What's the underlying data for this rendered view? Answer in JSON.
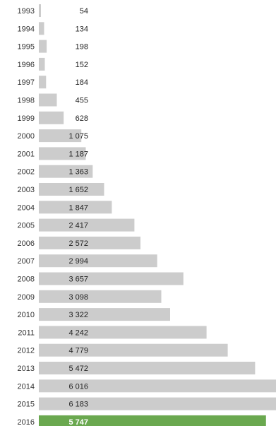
{
  "chart_data": {
    "type": "bar",
    "orientation": "horizontal",
    "categories": [
      "1993",
      "1994",
      "1995",
      "1996",
      "1997",
      "1998",
      "1999",
      "2000",
      "2001",
      "2002",
      "2003",
      "2004",
      "2005",
      "2006",
      "2007",
      "2008",
      "2009",
      "2010",
      "2011",
      "2012",
      "2013",
      "2014",
      "2015",
      "2016"
    ],
    "values": [
      54,
      134,
      198,
      152,
      184,
      455,
      628,
      1075,
      1187,
      1363,
      1652,
      1847,
      2417,
      2572,
      2994,
      3657,
      3098,
      3322,
      4242,
      4779,
      5472,
      6016,
      6183,
      5747
    ],
    "value_labels": [
      "54",
      "134",
      "198",
      "152",
      "184",
      "455",
      "628",
      "1 075",
      "1 187",
      "1 363",
      "1 652",
      "1 847",
      "2 417",
      "2 572",
      "2 994",
      "3 657",
      "3 098",
      "3 322",
      "4 242",
      "4 779",
      "5 472",
      "6 016",
      "6 183",
      "5 747"
    ],
    "title": "",
    "xlabel": "",
    "ylabel": "",
    "grid": false,
    "legend": "none",
    "colors": {
      "bar": "#cccccc",
      "highlight_bar": "#6aa84f",
      "label": "#222222",
      "highlight_label": "#ffffff"
    },
    "highlight_category": "2016"
  }
}
